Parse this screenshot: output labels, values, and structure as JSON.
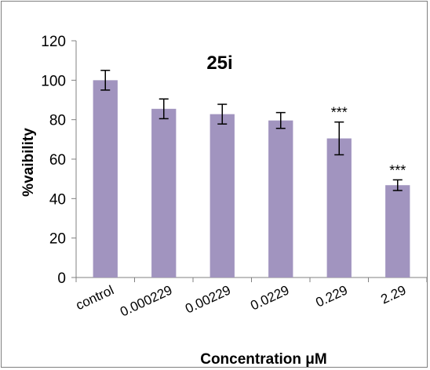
{
  "chart_data": {
    "type": "bar",
    "title": "25i",
    "xlabel": "Concentration μM",
    "ylabel": "%vaibility",
    "categories": [
      "control",
      "0.000229",
      "0.00229",
      "0.0229",
      "0.229",
      "2.29"
    ],
    "values": [
      100,
      85.5,
      82.8,
      79.6,
      70.5,
      46.8
    ],
    "errors": [
      5,
      5,
      5,
      4,
      8.3,
      2.7
    ],
    "significance": [
      "",
      "",
      "",
      "",
      "***",
      "***"
    ],
    "ylim": [
      0,
      120
    ],
    "yticks": [
      0,
      20,
      40,
      60,
      80,
      100,
      120
    ],
    "grid": false,
    "legend": "none",
    "bar_color": "#a194bf"
  }
}
